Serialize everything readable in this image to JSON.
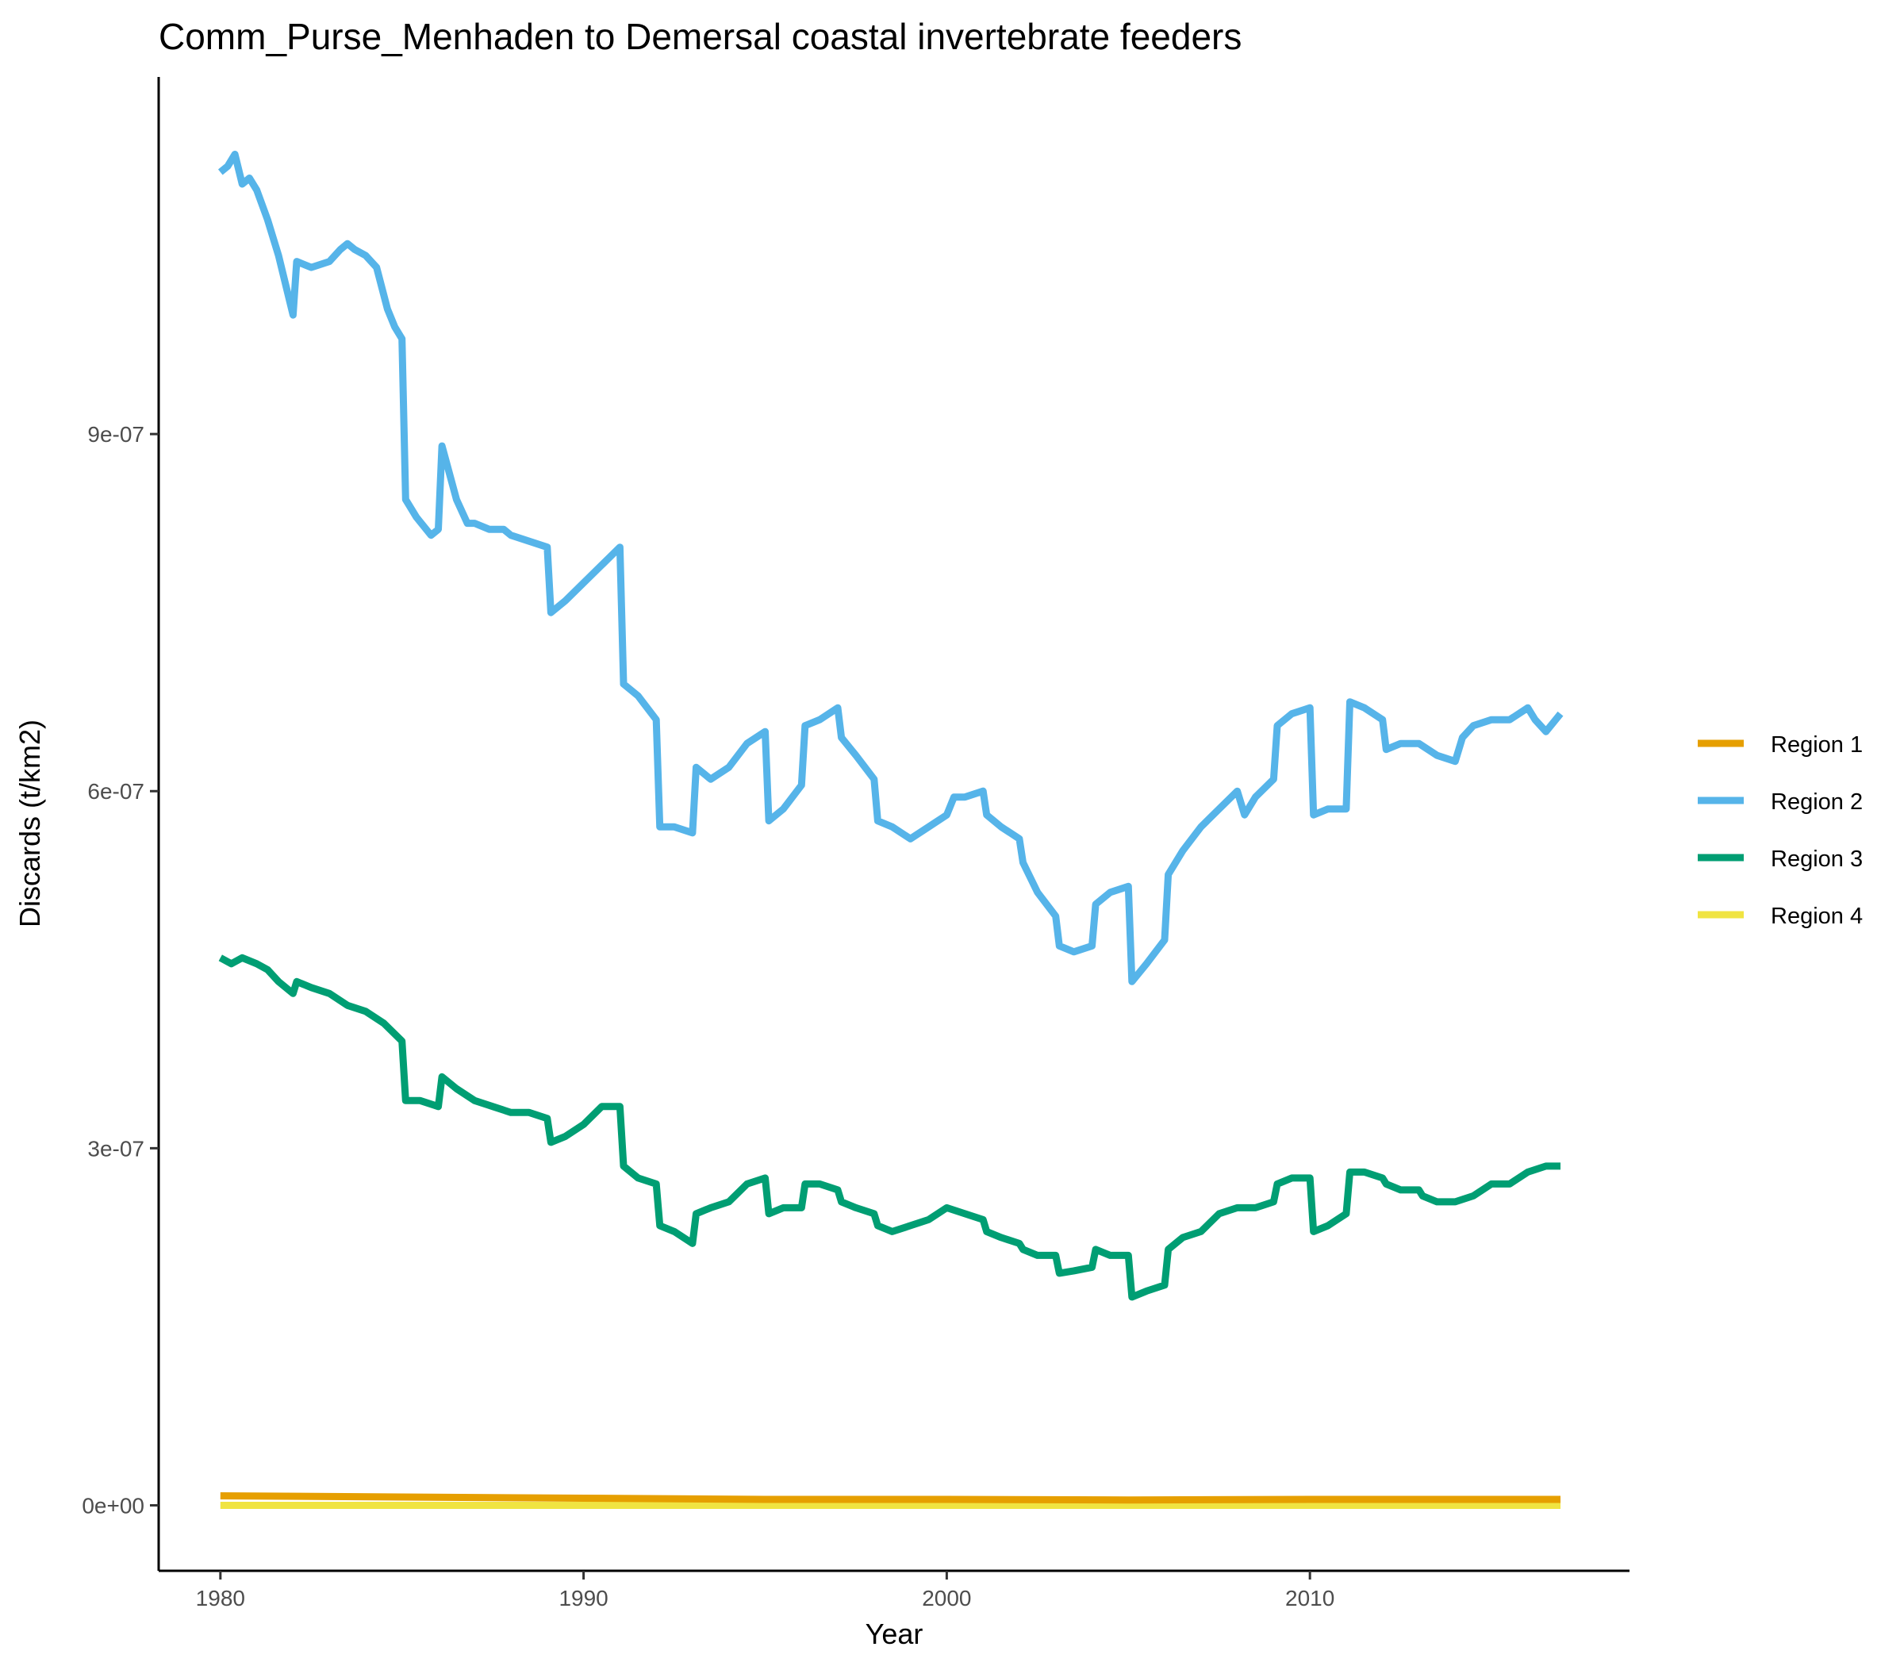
{
  "chart_data": {
    "type": "line",
    "title": "Comm_Purse_Menhaden to Demersal coastal invertebrate feeders",
    "xlabel": "Year",
    "ylabel": "Discards (t/km2)",
    "xlim": [
      1978.3,
      2018.8
    ],
    "ylim": [
      -5.5e-08,
      1.2e-06
    ],
    "x_ticks": [
      1980,
      1990,
      2000,
      2010
    ],
    "y_ticks": [
      0,
      3e-07,
      6e-07,
      9e-07
    ],
    "y_tick_labels": [
      "0e+00",
      "3e-07",
      "6e-07",
      "9e-07"
    ],
    "grid": false,
    "legend_position": "right",
    "series": [
      {
        "name": "Region 1",
        "color": "#E69F00",
        "points": [
          [
            1980.0,
            8e-09
          ],
          [
            1985,
            7e-09
          ],
          [
            1990,
            6e-09
          ],
          [
            1995,
            5e-09
          ],
          [
            2000,
            5e-09
          ],
          [
            2005,
            4.5e-09
          ],
          [
            2010,
            5e-09
          ],
          [
            2015,
            5e-09
          ],
          [
            2016.9,
            5e-09
          ]
        ]
      },
      {
        "name": "Region 2",
        "color": "#56B4E9",
        "points": [
          [
            1980.0,
            1.12e-06
          ],
          [
            1980.2,
            1.125e-06
          ],
          [
            1980.4,
            1.135e-06
          ],
          [
            1980.6,
            1.11e-06
          ],
          [
            1980.8,
            1.115e-06
          ],
          [
            1981.0,
            1.105e-06
          ],
          [
            1981.3,
            1.08e-06
          ],
          [
            1981.6,
            1.05e-06
          ],
          [
            1982.0,
            1e-06
          ],
          [
            1982.1,
            1.045e-06
          ],
          [
            1982.5,
            1.04e-06
          ],
          [
            1983.0,
            1.045e-06
          ],
          [
            1983.3,
            1.055e-06
          ],
          [
            1983.5,
            1.06e-06
          ],
          [
            1983.7,
            1.055e-06
          ],
          [
            1984.0,
            1.05e-06
          ],
          [
            1984.3,
            1.04e-06
          ],
          [
            1984.6,
            1.005e-06
          ],
          [
            1984.8,
            9.9e-07
          ],
          [
            1985.0,
            9.8e-07
          ],
          [
            1985.1,
            8.45e-07
          ],
          [
            1985.4,
            8.3e-07
          ],
          [
            1985.8,
            8.15e-07
          ],
          [
            1986.0,
            8.2e-07
          ],
          [
            1986.1,
            8.9e-07
          ],
          [
            1986.5,
            8.45e-07
          ],
          [
            1986.8,
            8.25e-07
          ],
          [
            1987.0,
            8.25e-07
          ],
          [
            1987.4,
            8.2e-07
          ],
          [
            1987.8,
            8.2e-07
          ],
          [
            1988.0,
            8.15e-07
          ],
          [
            1988.5,
            8.1e-07
          ],
          [
            1989.0,
            8.05e-07
          ],
          [
            1989.1,
            7.5e-07
          ],
          [
            1989.5,
            7.6e-07
          ],
          [
            1990.0,
            7.75e-07
          ],
          [
            1990.5,
            7.9e-07
          ],
          [
            1991.0,
            8.05e-07
          ],
          [
            1991.1,
            6.9e-07
          ],
          [
            1991.5,
            6.8e-07
          ],
          [
            1992.0,
            6.6e-07
          ],
          [
            1992.1,
            5.7e-07
          ],
          [
            1992.5,
            5.7e-07
          ],
          [
            1993.0,
            5.65e-07
          ],
          [
            1993.1,
            6.2e-07
          ],
          [
            1993.5,
            6.1e-07
          ],
          [
            1994.0,
            6.2e-07
          ],
          [
            1994.5,
            6.4e-07
          ],
          [
            1995.0,
            6.5e-07
          ],
          [
            1995.1,
            5.75e-07
          ],
          [
            1995.5,
            5.85e-07
          ],
          [
            1996.0,
            6.05e-07
          ],
          [
            1996.1,
            6.55e-07
          ],
          [
            1996.5,
            6.6e-07
          ],
          [
            1997.0,
            6.7e-07
          ],
          [
            1997.1,
            6.45e-07
          ],
          [
            1997.5,
            6.3e-07
          ],
          [
            1998.0,
            6.1e-07
          ],
          [
            1998.1,
            5.75e-07
          ],
          [
            1998.5,
            5.7e-07
          ],
          [
            1999.0,
            5.6e-07
          ],
          [
            1999.5,
            5.7e-07
          ],
          [
            2000.0,
            5.8e-07
          ],
          [
            2000.2,
            5.95e-07
          ],
          [
            2000.5,
            5.95e-07
          ],
          [
            2001.0,
            6e-07
          ],
          [
            2001.1,
            5.8e-07
          ],
          [
            2001.5,
            5.7e-07
          ],
          [
            2002.0,
            5.6e-07
          ],
          [
            2002.1,
            5.4e-07
          ],
          [
            2002.5,
            5.15e-07
          ],
          [
            2003.0,
            4.95e-07
          ],
          [
            2003.1,
            4.7e-07
          ],
          [
            2003.5,
            4.65e-07
          ],
          [
            2004.0,
            4.7e-07
          ],
          [
            2004.1,
            5.05e-07
          ],
          [
            2004.5,
            5.15e-07
          ],
          [
            2005.0,
            5.2e-07
          ],
          [
            2005.1,
            4.4e-07
          ],
          [
            2005.5,
            4.55e-07
          ],
          [
            2006.0,
            4.75e-07
          ],
          [
            2006.1,
            5.3e-07
          ],
          [
            2006.5,
            5.5e-07
          ],
          [
            2007.0,
            5.7e-07
          ],
          [
            2007.5,
            5.85e-07
          ],
          [
            2008.0,
            6e-07
          ],
          [
            2008.2,
            5.8e-07
          ],
          [
            2008.5,
            5.95e-07
          ],
          [
            2009.0,
            6.1e-07
          ],
          [
            2009.1,
            6.55e-07
          ],
          [
            2009.5,
            6.65e-07
          ],
          [
            2010.0,
            6.7e-07
          ],
          [
            2010.1,
            5.8e-07
          ],
          [
            2010.5,
            5.85e-07
          ],
          [
            2011.0,
            5.85e-07
          ],
          [
            2011.1,
            6.75e-07
          ],
          [
            2011.5,
            6.7e-07
          ],
          [
            2012.0,
            6.6e-07
          ],
          [
            2012.1,
            6.35e-07
          ],
          [
            2012.5,
            6.4e-07
          ],
          [
            2013.0,
            6.4e-07
          ],
          [
            2013.5,
            6.3e-07
          ],
          [
            2014.0,
            6.25e-07
          ],
          [
            2014.2,
            6.45e-07
          ],
          [
            2014.5,
            6.55e-07
          ],
          [
            2015.0,
            6.6e-07
          ],
          [
            2015.5,
            6.6e-07
          ],
          [
            2016.0,
            6.7e-07
          ],
          [
            2016.2,
            6.6e-07
          ],
          [
            2016.5,
            6.5e-07
          ],
          [
            2016.9,
            6.65e-07
          ]
        ]
      },
      {
        "name": "Region 3",
        "color": "#009E73",
        "points": [
          [
            1980.0,
            4.6e-07
          ],
          [
            1980.3,
            4.55e-07
          ],
          [
            1980.6,
            4.6e-07
          ],
          [
            1981.0,
            4.55e-07
          ],
          [
            1981.3,
            4.5e-07
          ],
          [
            1981.6,
            4.4e-07
          ],
          [
            1982.0,
            4.3e-07
          ],
          [
            1982.1,
            4.4e-07
          ],
          [
            1982.5,
            4.35e-07
          ],
          [
            1983.0,
            4.3e-07
          ],
          [
            1983.5,
            4.2e-07
          ],
          [
            1984.0,
            4.15e-07
          ],
          [
            1984.5,
            4.05e-07
          ],
          [
            1985.0,
            3.9e-07
          ],
          [
            1985.1,
            3.4e-07
          ],
          [
            1985.5,
            3.4e-07
          ],
          [
            1986.0,
            3.35e-07
          ],
          [
            1986.1,
            3.6e-07
          ],
          [
            1986.5,
            3.5e-07
          ],
          [
            1987.0,
            3.4e-07
          ],
          [
            1987.5,
            3.35e-07
          ],
          [
            1988.0,
            3.3e-07
          ],
          [
            1988.5,
            3.3e-07
          ],
          [
            1989.0,
            3.25e-07
          ],
          [
            1989.1,
            3.05e-07
          ],
          [
            1989.5,
            3.1e-07
          ],
          [
            1990.0,
            3.2e-07
          ],
          [
            1990.5,
            3.35e-07
          ],
          [
            1991.0,
            3.35e-07
          ],
          [
            1991.1,
            2.85e-07
          ],
          [
            1991.5,
            2.75e-07
          ],
          [
            1992.0,
            2.7e-07
          ],
          [
            1992.1,
            2.35e-07
          ],
          [
            1992.5,
            2.3e-07
          ],
          [
            1993.0,
            2.2e-07
          ],
          [
            1993.1,
            2.45e-07
          ],
          [
            1993.5,
            2.5e-07
          ],
          [
            1994.0,
            2.55e-07
          ],
          [
            1994.5,
            2.7e-07
          ],
          [
            1995.0,
            2.75e-07
          ],
          [
            1995.1,
            2.45e-07
          ],
          [
            1995.5,
            2.5e-07
          ],
          [
            1996.0,
            2.5e-07
          ],
          [
            1996.1,
            2.7e-07
          ],
          [
            1996.5,
            2.7e-07
          ],
          [
            1997.0,
            2.65e-07
          ],
          [
            1997.1,
            2.55e-07
          ],
          [
            1997.5,
            2.5e-07
          ],
          [
            1998.0,
            2.45e-07
          ],
          [
            1998.1,
            2.35e-07
          ],
          [
            1998.5,
            2.3e-07
          ],
          [
            1999.0,
            2.35e-07
          ],
          [
            1999.5,
            2.4e-07
          ],
          [
            2000.0,
            2.5e-07
          ],
          [
            2000.5,
            2.45e-07
          ],
          [
            2001.0,
            2.4e-07
          ],
          [
            2001.1,
            2.3e-07
          ],
          [
            2001.5,
            2.25e-07
          ],
          [
            2002.0,
            2.2e-07
          ],
          [
            2002.1,
            2.15e-07
          ],
          [
            2002.5,
            2.1e-07
          ],
          [
            2003.0,
            2.1e-07
          ],
          [
            2003.1,
            1.95e-07
          ],
          [
            2003.5,
            1.97e-07
          ],
          [
            2004.0,
            2e-07
          ],
          [
            2004.1,
            2.15e-07
          ],
          [
            2004.5,
            2.1e-07
          ],
          [
            2005.0,
            2.1e-07
          ],
          [
            2005.1,
            1.75e-07
          ],
          [
            2005.5,
            1.8e-07
          ],
          [
            2006.0,
            1.85e-07
          ],
          [
            2006.1,
            2.15e-07
          ],
          [
            2006.5,
            2.25e-07
          ],
          [
            2007.0,
            2.3e-07
          ],
          [
            2007.5,
            2.45e-07
          ],
          [
            2008.0,
            2.5e-07
          ],
          [
            2008.5,
            2.5e-07
          ],
          [
            2009.0,
            2.55e-07
          ],
          [
            2009.1,
            2.7e-07
          ],
          [
            2009.5,
            2.75e-07
          ],
          [
            2010.0,
            2.75e-07
          ],
          [
            2010.1,
            2.3e-07
          ],
          [
            2010.5,
            2.35e-07
          ],
          [
            2011.0,
            2.45e-07
          ],
          [
            2011.1,
            2.8e-07
          ],
          [
            2011.5,
            2.8e-07
          ],
          [
            2012.0,
            2.75e-07
          ],
          [
            2012.1,
            2.7e-07
          ],
          [
            2012.5,
            2.65e-07
          ],
          [
            2013.0,
            2.65e-07
          ],
          [
            2013.1,
            2.6e-07
          ],
          [
            2013.5,
            2.55e-07
          ],
          [
            2014.0,
            2.55e-07
          ],
          [
            2014.5,
            2.6e-07
          ],
          [
            2015.0,
            2.7e-07
          ],
          [
            2015.5,
            2.7e-07
          ],
          [
            2016.0,
            2.8e-07
          ],
          [
            2016.5,
            2.85e-07
          ],
          [
            2016.9,
            2.85e-07
          ]
        ]
      },
      {
        "name": "Region 4",
        "color": "#F0E442",
        "points": [
          [
            1980.0,
            0
          ],
          [
            1990,
            0
          ],
          [
            2000,
            0
          ],
          [
            2010,
            0
          ],
          [
            2016.9,
            0
          ]
        ]
      }
    ]
  }
}
